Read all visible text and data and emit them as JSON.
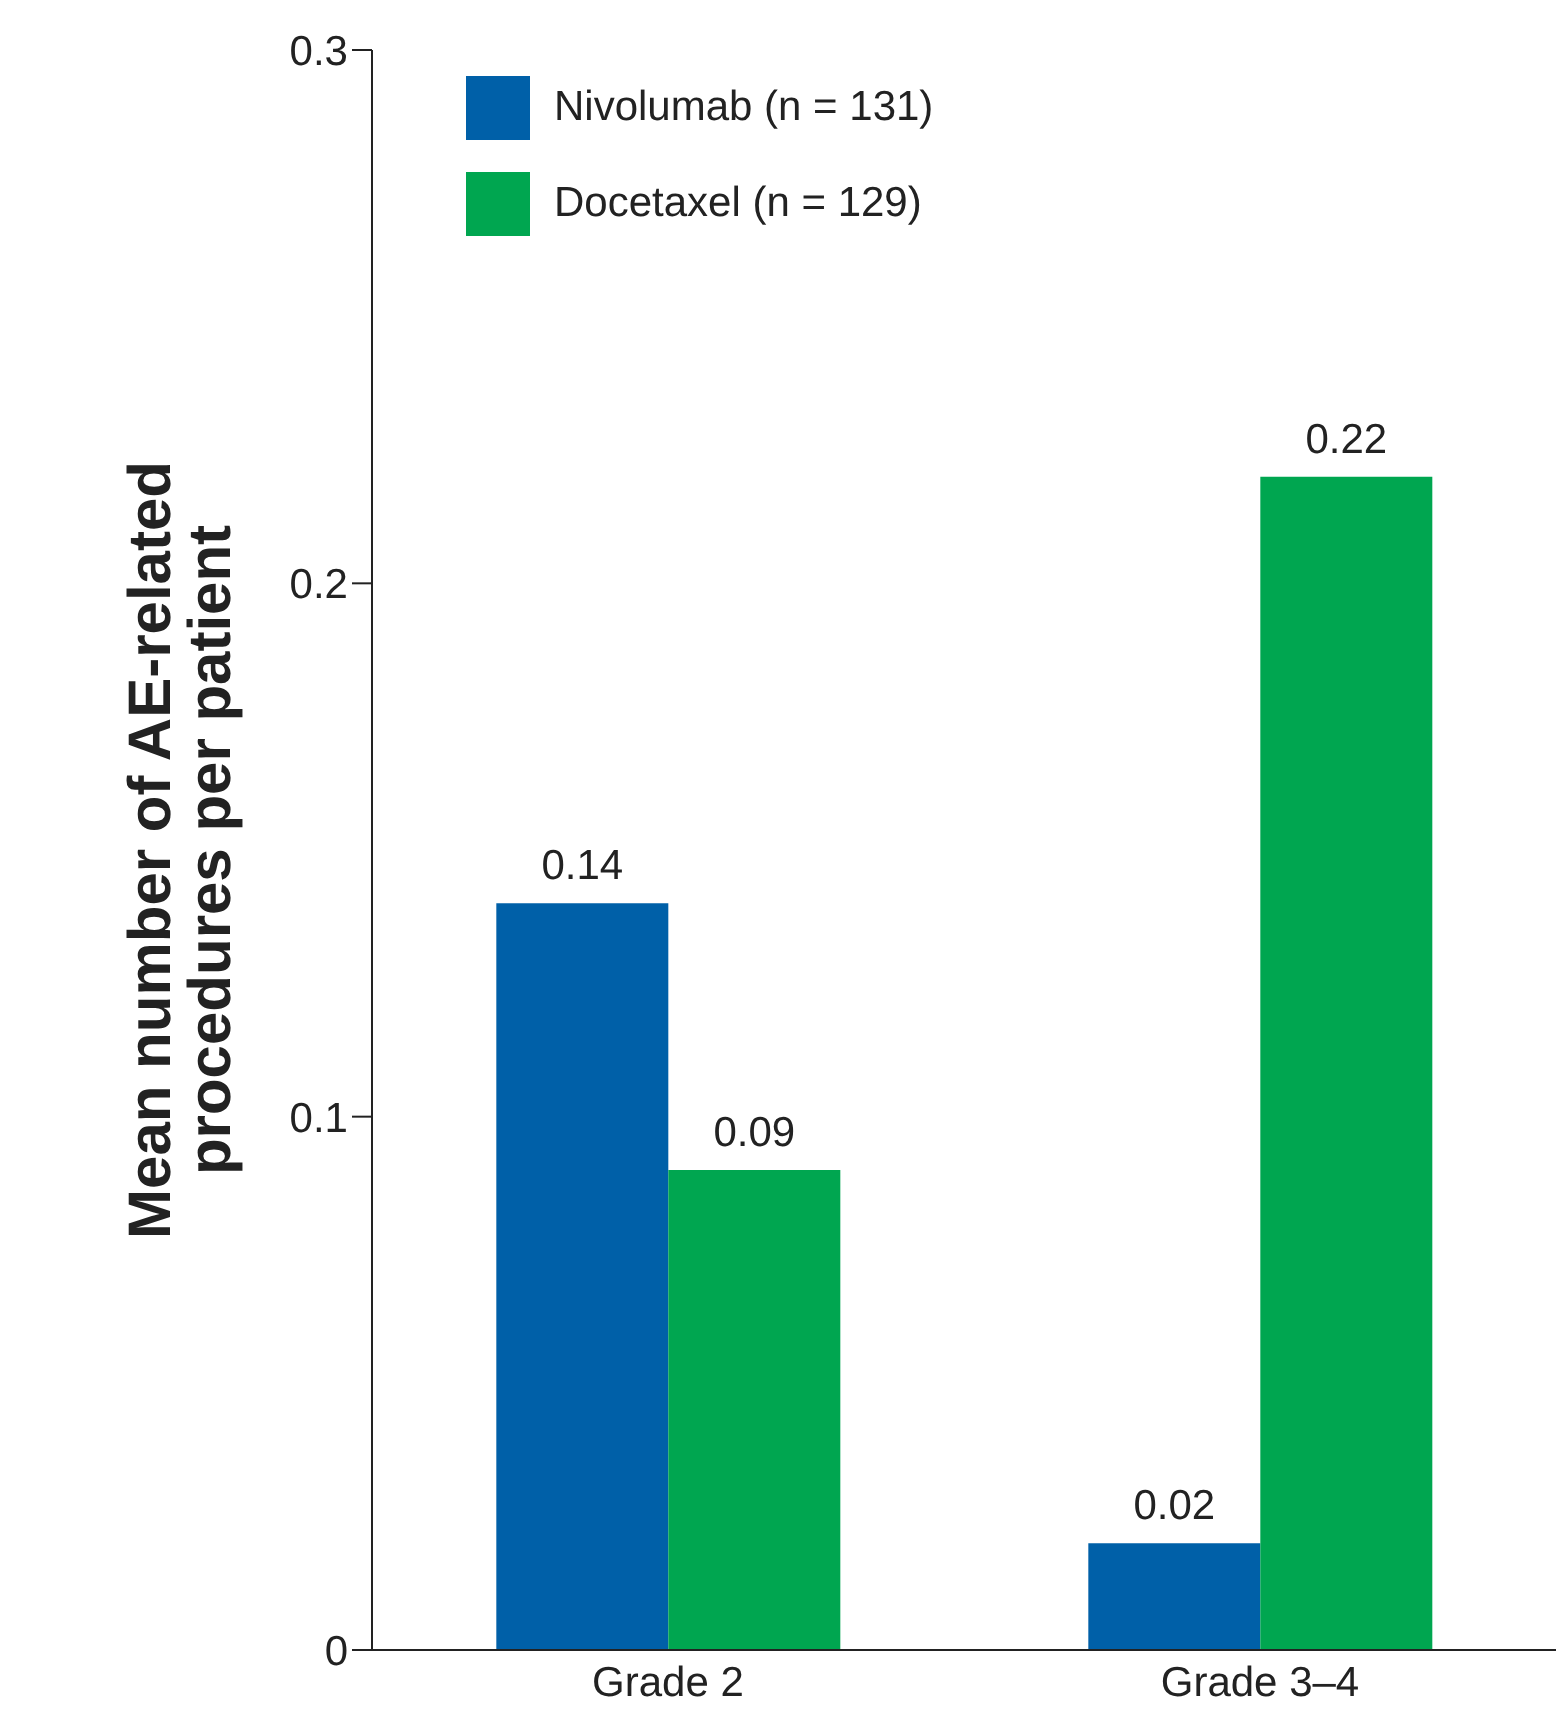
{
  "chart_data": {
    "type": "bar",
    "ylabel": "Mean number of AE-related procedures per patient",
    "categories": [
      "Grade 2",
      "Grade 3–4"
    ],
    "series": [
      {
        "name": "Nivolumab (n = 131)",
        "color": "#0060a8",
        "values": [
          0.14,
          0.02
        ]
      },
      {
        "name": "Docetaxel (n = 129)",
        "color": "#00a650",
        "values": [
          0.09,
          0.22
        ]
      }
    ],
    "ylim": [
      0,
      0.3
    ],
    "yticks": [
      0,
      0.1,
      0.2,
      0.3
    ],
    "data_labels": true,
    "legend": "top left",
    "grid": false
  }
}
